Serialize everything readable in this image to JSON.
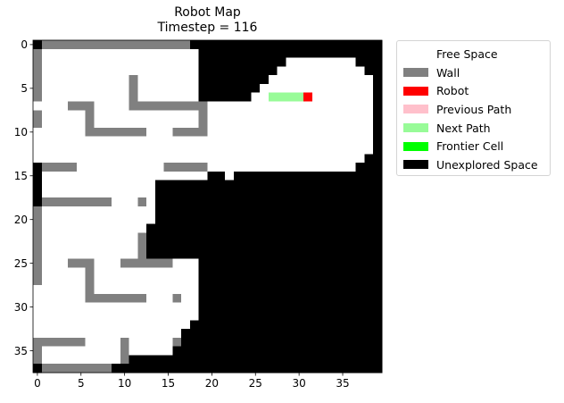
{
  "chart_data": {
    "type": "heatmap",
    "title": "Robot Map",
    "subtitle": "Timestep = 116",
    "xlim": [
      -0.5,
      39.5
    ],
    "ylim": [
      37.5,
      -0.5
    ],
    "xticks": [
      0,
      5,
      10,
      15,
      20,
      25,
      30,
      35
    ],
    "yticks": [
      0,
      5,
      10,
      15,
      20,
      25,
      30,
      35
    ],
    "grid": false,
    "legend_placement": "outside right, top",
    "legend": [
      {
        "key": "F",
        "label": "Free Space",
        "color": "#ffffff"
      },
      {
        "key": "W",
        "label": "Wall",
        "color": "#808080"
      },
      {
        "key": "R",
        "label": "Robot",
        "color": "#ff0000"
      },
      {
        "key": "P",
        "label": "Previous Path",
        "color": "#ffc0cb"
      },
      {
        "key": "N",
        "label": "Next Path",
        "color": "#98fb98"
      },
      {
        "key": "C",
        "label": "Frontier Cell",
        "color": "#00ff00"
      },
      {
        "key": "U",
        "label": "Unexplored Space",
        "color": "#000000"
      }
    ],
    "grid_cells": [
      "UWWWWWWWWWWWWWWWWWUUUUUUUUUUUUUUUUUUUUUU",
      "WFFFFFFFFFFFFFFFFFFUUUUUUUUUUUUUUUUUUUUU",
      "WFFFFFFFFFFFFFFFFFFUUUUUUUUUUFFFFFFFFUUU",
      "WFFFFFFFFFFFFFFFFFFUUUUUUUUUFFFFFFFFFFUU",
      "WFFFFFFFFFFWFFFFFFFUUUUUUUUFFFFFFFFFFFFU",
      "WFFFFFFFFFFWFFFFFFFUUUUUUUFFFFFFFFFFFFFU",
      "WFFFFFFFFFFWFFFFFFFUUUUUUFFNNNNRFFFFFFFU",
      "FFFFWWWFFFFWWWWWWWWWFFFFFFFFFFFFFFFFFFFU",
      "WFFFFFWFFFFFFFFFFFFWFFFFFFFFFFFFFFFFFFFU",
      "WFFFFFWFFFFFFFFFFFFWFFFFFFFFFFFFFFFFFFFU",
      "FFFFFFWWWWWWWFFFWWWWFFFFFFFFFFFFFFFFFFFU",
      "FFFFFFFFFFFFFFFFFFFFFFFFFFFFFFFFFFFFFFFU",
      "FFFFFFFFFFFFFFFFFFFFFFFFFFFFFFFFFFFFFFFU",
      "FFFFFFFFFFFFFFFFFFFFFFFFFFFFFFFFFFFFFFUU",
      "UWWWWFFFFFFFFFFWWWWWFFFFFFFFFFFFFFFFFUUU",
      "UFFFFFFFFFFFFFFFFFFFUUFUUUUUUUUUUUUUUUUU",
      "UFFFFFFFFFFFFFUUUUUUUUUUUUUUUUUUUUUUUUUU",
      "UFFFFFFFFFFFFFUUUUUUUUUUUUUUUUUUUUUUUUUU",
      "UWWWWWWWWFFFWFUUUUUUUUUUUUUUUUUUUUUUUUUU",
      "WFFFFFFFFFFFFFUUUUUUUUUUUUUUUUUUUUUUUUUU",
      "WFFFFFFFFFFFFFUUUUUUUUUUUUUUUUUUUUUUUUUU",
      "WFFFFFFFFFFFFUUUUUUUUUUUUUUUUUUUUUUUUUUU",
      "WFFFFFFFFFFFWUUUUUUUUUUUUUUUUUUUUUUUUUUU",
      "WFFFFFFFFFFFWUUUUUUUUUUUUUUUUUUUUUUUUUUU",
      "WFFFFFFFFFFFWUUUUUUUUUUUUUUUUUUUUUUUUUUU",
      "WFFFWWWFFFWWWWWWFFFUUUUUUUUUUUUUUUUUUUUU",
      "WFFFFFWFFFFFFFFFFFFUUUUUUUUUUUUUUUUUUUUU",
      "WFFFFFWFFFFFFFFFFFFUUUUUUUUUUUUUUUUUUUUU",
      "FFFFFFWFFFFFFFFFFFFUUUUUUUUUUUUUUUUUUUUU",
      "FFFFFFWWWWWWWFFFWFFUUUUUUUUUUUUUUUUUUUUU",
      "FFFFFFFFFFFFFFFFFFFUUUUUUUUUUUUUUUUUUUUU",
      "FFFFFFFFFFFFFFFFFFFUUUUUUUUUUUUUUUUUUUUU",
      "FFFFFFFFFFFFFFFFFFUUUUUUUUUUUUUUUUUUUUUU",
      "FFFFFFFFFFFFFFFFFUUUUUUUUUUUUUUUUUUUUUUU",
      "WWWWWWFFFFWFFFFFWUUUUUUUUUUUUUUUUUUUUUUU",
      "WFFFFFFFFFWFFFFFUUUUUUUUUUUUUUUUUUUUUUUU",
      "WFFFFFFFFFWUUUUUUUUUUUUUUUUUUUUUUUUUUUUU",
      "UWWWWWWWWUUUUUUUUUUUUUUUUUUUUUUUUUUUUUUU"
    ]
  }
}
